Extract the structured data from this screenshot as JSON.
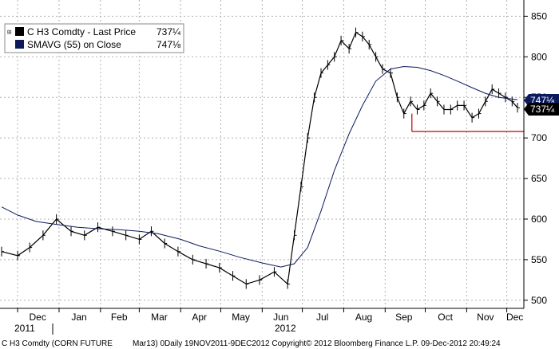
{
  "chart_data": {
    "type": "line",
    "instrument": "C H3 Comdty",
    "ylim": [
      490,
      870
    ],
    "y_ticks": [
      "500",
      "550",
      "600",
      "650",
      "700",
      "750",
      "800",
      "850"
    ],
    "x_ticks": [
      "Dec",
      "Jan",
      "Feb",
      "Mar",
      "Apr",
      "May",
      "Jun",
      "Jul",
      "Aug",
      "Sep",
      "Oct",
      "Nov",
      "Dec"
    ],
    "year_labels": [
      "2011",
      "2012"
    ],
    "legend": [
      {
        "label": "C H3 Comdty - Last Price",
        "value": "737¼",
        "color": "#000000"
      },
      {
        "label": "SMAVG (55) on Close",
        "value": "747⅛",
        "color": "#0a1a5c"
      }
    ],
    "last_price_tag": "737¼",
    "sma_tag": "747⅛",
    "series": [
      {
        "name": "C H3 Comdty - Last Price",
        "color": "#000000",
        "x": [
          "2011-11-19",
          "2011-12-01",
          "2011-12-10",
          "2011-12-20",
          "2011-12-30",
          "2012-01-10",
          "2012-01-20",
          "2012-01-30",
          "2012-02-10",
          "2012-02-20",
          "2012-03-01",
          "2012-03-10",
          "2012-03-20",
          "2012-03-30",
          "2012-04-10",
          "2012-04-20",
          "2012-04-30",
          "2012-05-10",
          "2012-05-20",
          "2012-05-30",
          "2012-06-10",
          "2012-06-20",
          "2012-06-25",
          "2012-06-30",
          "2012-07-05",
          "2012-07-10",
          "2012-07-15",
          "2012-07-20",
          "2012-07-25",
          "2012-07-30",
          "2012-08-05",
          "2012-08-10",
          "2012-08-15",
          "2012-08-20",
          "2012-08-25",
          "2012-08-30",
          "2012-09-05",
          "2012-09-10",
          "2012-09-15",
          "2012-09-20",
          "2012-09-25",
          "2012-09-30",
          "2012-10-05",
          "2012-10-10",
          "2012-10-15",
          "2012-10-20",
          "2012-10-25",
          "2012-10-30",
          "2012-11-05",
          "2012-11-10",
          "2012-11-15",
          "2012-11-20",
          "2012-11-25",
          "2012-11-30",
          "2012-12-05",
          "2012-12-09"
        ],
        "values": [
          560,
          555,
          565,
          580,
          600,
          585,
          580,
          590,
          585,
          580,
          575,
          585,
          570,
          560,
          550,
          545,
          540,
          530,
          520,
          525,
          535,
          520,
          580,
          640,
          700,
          750,
          780,
          790,
          800,
          820,
          810,
          830,
          825,
          815,
          800,
          785,
          780,
          750,
          730,
          745,
          735,
          740,
          755,
          745,
          735,
          735,
          740,
          740,
          725,
          730,
          745,
          760,
          755,
          750,
          745,
          737.25
        ]
      },
      {
        "name": "SMAVG (55) on Close",
        "color": "#0a1a5c",
        "x": [
          "2011-11-19",
          "2011-12-01",
          "2011-12-15",
          "2012-01-01",
          "2012-01-15",
          "2012-02-01",
          "2012-02-15",
          "2012-03-01",
          "2012-03-15",
          "2012-04-01",
          "2012-04-15",
          "2012-05-01",
          "2012-05-15",
          "2012-06-01",
          "2012-06-15",
          "2012-06-25",
          "2012-07-05",
          "2012-07-15",
          "2012-07-25",
          "2012-08-05",
          "2012-08-15",
          "2012-08-25",
          "2012-09-05",
          "2012-09-15",
          "2012-09-25",
          "2012-10-05",
          "2012-10-15",
          "2012-10-25",
          "2012-11-05",
          "2012-11-15",
          "2012-11-25",
          "2012-12-05",
          "2012-12-09"
        ],
        "values": [
          615,
          605,
          597,
          593,
          590,
          588,
          587,
          585,
          582,
          575,
          567,
          560,
          553,
          546,
          541,
          545,
          565,
          610,
          660,
          705,
          740,
          770,
          785,
          788,
          787,
          783,
          777,
          770,
          762,
          755,
          750,
          748,
          747.125
        ]
      }
    ],
    "support_line": {
      "from": "2012-09-21",
      "to": "2012-12-09",
      "value": 708,
      "color": "#c00000"
    }
  },
  "footer": {
    "left": "C H3 Comdty (CORN FUTURE",
    "right": "Mar13) 0Daily 19NOV2011-9DEC2012 Copyright© 2012 Bloomberg Finance L.P. 09-Dec-2012 20:49:24"
  }
}
